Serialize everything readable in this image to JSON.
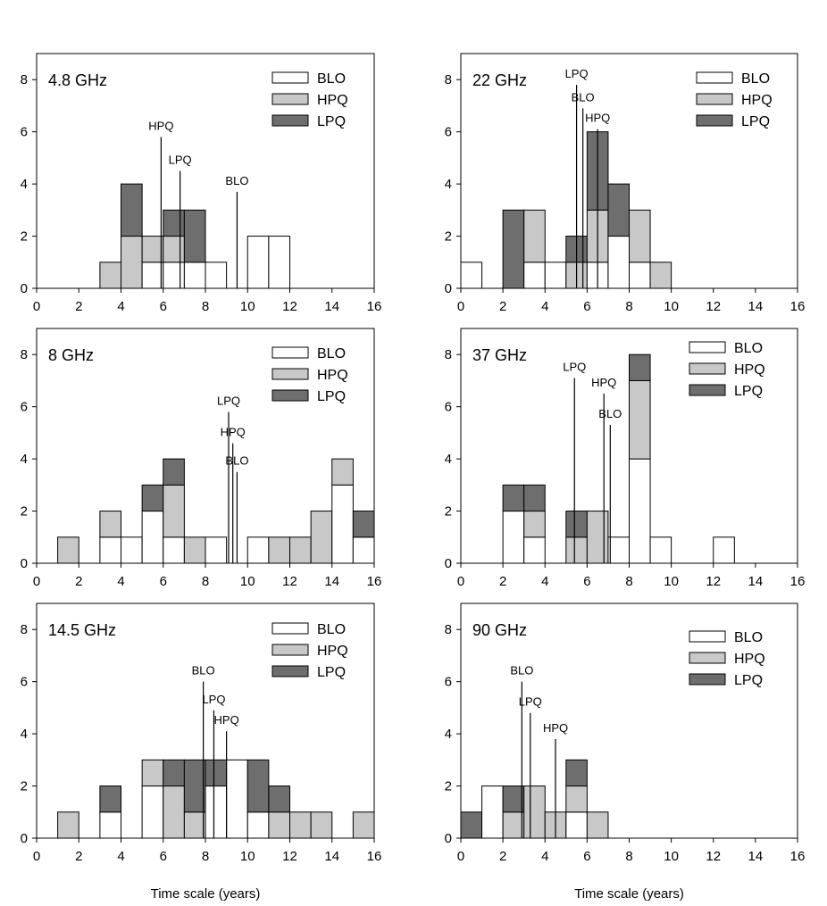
{
  "colors": {
    "BLO": "#ffffff",
    "HPQ": "#c8c8c8",
    "LPQ": "#6e6e6e",
    "edge": "#000000"
  },
  "chart_data": [
    {
      "type": "bar",
      "stacked": true,
      "title": "4.8 GHz",
      "xlabel": "",
      "ylabel": "",
      "xlim": [
        0,
        16
      ],
      "ylim": [
        0,
        9
      ],
      "xticks": [
        "0",
        "2",
        "4",
        "6",
        "8",
        "10",
        "12",
        "14",
        "16"
      ],
      "yticks": [
        "0",
        "2",
        "4",
        "6",
        "8"
      ],
      "legend": [
        "BLO",
        "HPQ",
        "LPQ"
      ],
      "legend_position": "top-right",
      "series": [
        {
          "name": "BLO",
          "values": [
            0,
            0,
            0,
            0,
            0,
            1,
            1,
            1,
            1,
            0,
            2,
            2,
            0,
            0,
            0,
            0
          ]
        },
        {
          "name": "HPQ",
          "values": [
            0,
            0,
            0,
            1,
            2,
            1,
            1,
            0,
            0,
            0,
            0,
            0,
            0,
            0,
            0,
            0
          ]
        },
        {
          "name": "LPQ",
          "values": [
            0,
            0,
            0,
            0,
            2,
            0,
            1,
            2,
            0,
            0,
            0,
            0,
            0,
            0,
            0,
            0
          ]
        }
      ],
      "markers": [
        {
          "label": "HPQ",
          "x": 5.9,
          "y": 5.8
        },
        {
          "label": "LPQ",
          "x": 6.8,
          "y": 4.5
        },
        {
          "label": "BLO",
          "x": 9.5,
          "y": 3.7
        }
      ]
    },
    {
      "type": "bar",
      "stacked": true,
      "title": "22 GHz",
      "xlabel": "",
      "ylabel": "",
      "xlim": [
        0,
        16
      ],
      "ylim": [
        0,
        9
      ],
      "xticks": [
        "0",
        "2",
        "4",
        "6",
        "8",
        "10",
        "12",
        "14",
        "16"
      ],
      "yticks": [
        "0",
        "2",
        "4",
        "6",
        "8"
      ],
      "legend": [
        "BLO",
        "HPQ",
        "LPQ"
      ],
      "legend_position": "top-right",
      "series": [
        {
          "name": "BLO",
          "values": [
            1,
            0,
            0,
            1,
            1,
            0,
            1,
            2,
            1,
            0,
            0,
            0,
            0,
            0,
            0,
            0
          ]
        },
        {
          "name": "HPQ",
          "values": [
            0,
            0,
            0,
            2,
            0,
            1,
            2,
            0,
            2,
            1,
            0,
            0,
            0,
            0,
            0,
            0
          ]
        },
        {
          "name": "LPQ",
          "values": [
            0,
            0,
            3,
            0,
            0,
            1,
            3,
            2,
            0,
            0,
            0,
            0,
            0,
            0,
            0,
            0
          ]
        }
      ],
      "markers": [
        {
          "label": "LPQ",
          "x": 5.5,
          "y": 7.8
        },
        {
          "label": "BLO",
          "x": 5.8,
          "y": 6.9
        },
        {
          "label": "HPQ",
          "x": 6.5,
          "y": 6.1
        }
      ]
    },
    {
      "type": "bar",
      "stacked": true,
      "title": "8 GHz",
      "xlabel": "",
      "ylabel": "",
      "xlim": [
        0,
        16
      ],
      "ylim": [
        0,
        9
      ],
      "xticks": [
        "0",
        "2",
        "4",
        "6",
        "8",
        "10",
        "12",
        "14",
        "16"
      ],
      "yticks": [
        "0",
        "2",
        "4",
        "6",
        "8"
      ],
      "legend": [
        "BLO",
        "HPQ",
        "LPQ"
      ],
      "legend_position": "top-right",
      "series": [
        {
          "name": "BLO",
          "values": [
            0,
            0,
            0,
            1,
            1,
            2,
            1,
            0,
            1,
            0,
            1,
            0,
            0,
            0,
            3,
            1
          ]
        },
        {
          "name": "HPQ",
          "values": [
            0,
            1,
            0,
            1,
            0,
            0,
            2,
            1,
            0,
            0,
            0,
            1,
            1,
            2,
            1,
            0
          ]
        },
        {
          "name": "LPQ",
          "values": [
            0,
            0,
            0,
            0,
            0,
            1,
            1,
            0,
            0,
            0,
            0,
            0,
            0,
            0,
            0,
            1
          ]
        }
      ],
      "markers": [
        {
          "label": "LPQ",
          "x": 9.1,
          "y": 5.8
        },
        {
          "label": "HPQ",
          "x": 9.3,
          "y": 4.6
        },
        {
          "label": "BLO",
          "x": 9.5,
          "y": 3.5
        }
      ]
    },
    {
      "type": "bar",
      "stacked": true,
      "title": "37 GHz",
      "xlabel": "",
      "ylabel": "",
      "xlim": [
        0,
        16
      ],
      "ylim": [
        0,
        9
      ],
      "xticks": [
        "0",
        "2",
        "4",
        "6",
        "8",
        "10",
        "12",
        "14",
        "16"
      ],
      "yticks": [
        "0",
        "2",
        "4",
        "6",
        "8"
      ],
      "legend": [
        "BLO",
        "HPQ",
        "LPQ"
      ],
      "legend_position": "top-right",
      "series": [
        {
          "name": "BLO",
          "values": [
            0,
            0,
            2,
            1,
            0,
            0,
            0,
            1,
            4,
            1,
            0,
            0,
            1,
            0,
            0,
            0
          ]
        },
        {
          "name": "HPQ",
          "values": [
            0,
            0,
            0,
            1,
            0,
            1,
            2,
            0,
            3,
            0,
            0,
            0,
            0,
            0,
            0,
            0
          ]
        },
        {
          "name": "LPQ",
          "values": [
            0,
            0,
            1,
            1,
            0,
            1,
            0,
            0,
            1,
            0,
            0,
            0,
            0,
            0,
            0,
            0
          ]
        }
      ],
      "markers": [
        {
          "label": "LPQ",
          "x": 5.4,
          "y": 7.1
        },
        {
          "label": "HPQ",
          "x": 6.8,
          "y": 6.5
        },
        {
          "label": "BLO",
          "x": 7.1,
          "y": 5.3
        }
      ]
    },
    {
      "type": "bar",
      "stacked": true,
      "title": "14.5 GHz",
      "xlabel": "Time scale (years)",
      "ylabel": "",
      "xlim": [
        0,
        16
      ],
      "ylim": [
        0,
        9
      ],
      "xticks": [
        "0",
        "2",
        "4",
        "6",
        "8",
        "10",
        "12",
        "14",
        "16"
      ],
      "yticks": [
        "0",
        "2",
        "4",
        "6",
        "8"
      ],
      "legend": [
        "BLO",
        "HPQ",
        "LPQ"
      ],
      "legend_position": "top-right",
      "series": [
        {
          "name": "BLO",
          "values": [
            0,
            0,
            0,
            1,
            0,
            2,
            0,
            0,
            2,
            3,
            1,
            0,
            0,
            0,
            0,
            0
          ]
        },
        {
          "name": "HPQ",
          "values": [
            0,
            1,
            0,
            0,
            0,
            1,
            2,
            1,
            0,
            0,
            0,
            1,
            1,
            1,
            0,
            1
          ]
        },
        {
          "name": "LPQ",
          "values": [
            0,
            0,
            0,
            1,
            0,
            0,
            1,
            2,
            1,
            0,
            2,
            1,
            0,
            0,
            0,
            0
          ]
        }
      ],
      "markers": [
        {
          "label": "BLO",
          "x": 7.9,
          "y": 6.0
        },
        {
          "label": "LPQ",
          "x": 8.4,
          "y": 4.9
        },
        {
          "label": "HPQ",
          "x": 9.0,
          "y": 4.1
        }
      ]
    },
    {
      "type": "bar",
      "stacked": true,
      "title": "90 GHz",
      "xlabel": "Time scale (years)",
      "ylabel": "",
      "xlim": [
        0,
        16
      ],
      "ylim": [
        0,
        9
      ],
      "xticks": [
        "0",
        "2",
        "4",
        "6",
        "8",
        "10",
        "12",
        "14",
        "16"
      ],
      "yticks": [
        "0",
        "2",
        "4",
        "6",
        "8"
      ],
      "legend": [
        "BLO",
        "HPQ",
        "LPQ"
      ],
      "legend_position": "top-right",
      "series": [
        {
          "name": "BLO",
          "values": [
            0,
            2,
            0,
            0,
            0,
            1,
            0,
            0,
            0,
            0,
            0,
            0,
            0,
            0,
            0,
            0
          ]
        },
        {
          "name": "HPQ",
          "values": [
            0,
            0,
            1,
            2,
            1,
            1,
            1,
            0,
            0,
            0,
            0,
            0,
            0,
            0,
            0,
            0
          ]
        },
        {
          "name": "LPQ",
          "values": [
            1,
            0,
            1,
            0,
            0,
            1,
            0,
            0,
            0,
            0,
            0,
            0,
            0,
            0,
            0,
            0
          ]
        }
      ],
      "markers": [
        {
          "label": "BLO",
          "x": 2.9,
          "y": 6.0
        },
        {
          "label": "LPQ",
          "x": 3.3,
          "y": 4.8
        },
        {
          "label": "HPQ",
          "x": 4.5,
          "y": 3.8
        }
      ]
    }
  ]
}
